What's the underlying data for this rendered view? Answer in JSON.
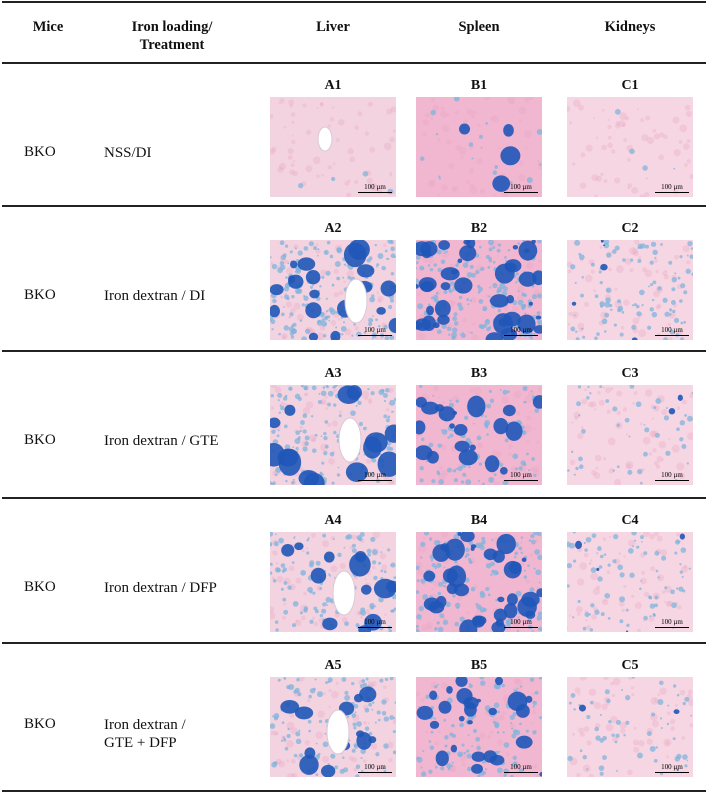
{
  "header": {
    "mice": "Mice",
    "treatment_line1": "Iron loading/",
    "treatment_line2": "Treatment",
    "liver": "Liver",
    "spleen": "Spleen",
    "kidneys": "Kidneys"
  },
  "scale_label": "100 µm",
  "rows": [
    {
      "mice": "BKO",
      "treatment": [
        "NSS/DI"
      ],
      "panels": [
        "A1",
        "B1",
        "C1"
      ]
    },
    {
      "mice": "BKO",
      "treatment": [
        "Iron dextran / DI"
      ],
      "panels": [
        "A2",
        "B2",
        "C2"
      ]
    },
    {
      "mice": "BKO",
      "treatment": [
        "Iron dextran / GTE"
      ],
      "panels": [
        "A3",
        "B3",
        "C3"
      ]
    },
    {
      "mice": "BKO",
      "treatment": [
        "Iron dextran / DFP"
      ],
      "panels": [
        "A4",
        "B4",
        "C4"
      ]
    },
    {
      "mice": "BKO",
      "treatment": [
        "Iron dextran /",
        "GTE + DFP"
      ],
      "panels": [
        "A5",
        "B5",
        "C5"
      ]
    }
  ],
  "stain_colors": {
    "tissue_pink": "#f4c9d8",
    "iron_blue": "#1f56b8",
    "iron_light": "#7fb3dc"
  }
}
